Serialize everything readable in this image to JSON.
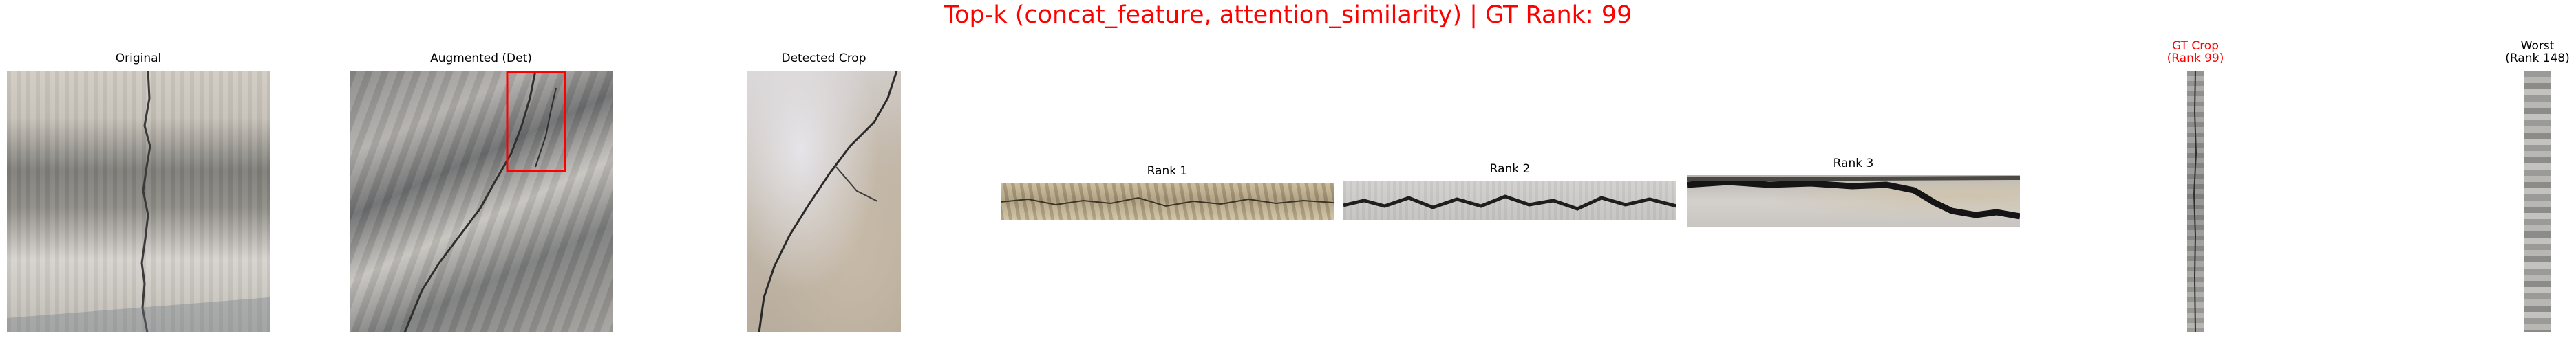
{
  "figure": {
    "title": "Top-k (concat_feature, attention_similarity) | GT Rank: 99",
    "title_color": "#ff0000"
  },
  "panels": {
    "original": {
      "label": "Original"
    },
    "augmented": {
      "label": "Augmented (Det)",
      "box_color": "#ff0000"
    },
    "detected_crop": {
      "label": "Detected Crop"
    },
    "rank1": {
      "label": "Rank 1"
    },
    "rank2": {
      "label": "Rank 2"
    },
    "rank3": {
      "label": "Rank 3"
    },
    "gt_crop": {
      "label_line1": "GT Crop",
      "label_line2": "(Rank 99)",
      "label_color": "#ff0000"
    },
    "worst": {
      "label_line1": "Worst",
      "label_line2": "(Rank 148)"
    }
  }
}
